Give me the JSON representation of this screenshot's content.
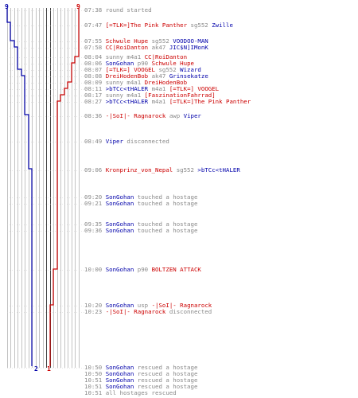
{
  "scoreboard": {
    "team_blue_start": "9",
    "team_red_start": "9",
    "team_blue_end": "2",
    "team_red_end": "1",
    "team_blue_color": "#0000aa",
    "team_red_color": "#cc0000",
    "grid_color": "#999999"
  },
  "events": [
    {
      "time": "07:38",
      "p1": "",
      "p1_team": "",
      "action": "round started",
      "p2": "",
      "p2_team": ""
    },
    {
      "time": "07:47",
      "p1": "[=TLK=]The Pink Panther",
      "p1_team": "red",
      "action": "sg552",
      "p2": "Zwille",
      "p2_team": "blue"
    },
    {
      "time": "07:55",
      "p1": "Schwule Hupe",
      "p1_team": "red",
      "action": "sg552",
      "p2": "VOODOO-MAN",
      "p2_team": "blue"
    },
    {
      "time": "07:58",
      "p1": "CC|RoiDanton",
      "p1_team": "red",
      "action": "ak47",
      "p2": "JIC$N]IMonK",
      "p2_team": "blue"
    },
    {
      "time": "08:04",
      "p1": "sunny",
      "p1_team": "gray",
      "action": "m4a1",
      "p2": "CC|RoiDanton",
      "p2_team": "red"
    },
    {
      "time": "08:06",
      "p1": "SonGohan",
      "p1_team": "blue",
      "action": "p90",
      "p2": "Schwule Hupe",
      "p2_team": "red"
    },
    {
      "time": "08:07",
      "p1": "[=TLK=] VOOGEL",
      "p1_team": "red",
      "action": "sg552",
      "p2": "Wizard",
      "p2_team": "blue"
    },
    {
      "time": "08:08",
      "p1": "DreiHodenBob",
      "p1_team": "red",
      "action": "ak47",
      "p2": "Grinsekatze",
      "p2_team": "blue"
    },
    {
      "time": "08:09",
      "p1": "sunny",
      "p1_team": "gray",
      "action": "m4a1",
      "p2": "DreiHodenBob",
      "p2_team": "red"
    },
    {
      "time": "08:11",
      "p1": ">bTCc<tHALER",
      "p1_team": "blue",
      "action": "m4a1",
      "p2": "[=TLK=] VOOGEL",
      "p2_team": "red"
    },
    {
      "time": "08:17",
      "p1": "sunny",
      "p1_team": "gray",
      "action": "m4a1",
      "p2": "[FaszinationFahrrad]",
      "p2_team": "red"
    },
    {
      "time": "08:27",
      "p1": ">bTCc<tHALER",
      "p1_team": "blue",
      "action": "m4a1",
      "p2": "[=TLK=]The Pink Panther",
      "p2_team": "red"
    },
    {
      "time": "08:36",
      "p1": "-|SoI|- Ragnarock",
      "p1_team": "red",
      "action": "awp",
      "p2": "Viper",
      "p2_team": "blue"
    },
    {
      "time": "08:49",
      "p1": "Viper",
      "p1_team": "blue",
      "action": "disconnected",
      "p2": "",
      "p2_team": ""
    },
    {
      "time": "09:06",
      "p1": "Kronprinz_von_Nepal",
      "p1_team": "red",
      "action": "sg552",
      "p2": ">bTCc<tHALER",
      "p2_team": "blue"
    },
    {
      "time": "09:20",
      "p1": "SonGohan",
      "p1_team": "blue",
      "action": "touched a hostage",
      "p2": "",
      "p2_team": ""
    },
    {
      "time": "09:21",
      "p1": "SonGohan",
      "p1_team": "blue",
      "action": "touched a hostage",
      "p2": "",
      "p2_team": ""
    },
    {
      "time": "09:35",
      "p1": "SonGohan",
      "p1_team": "blue",
      "action": "touched a hostage",
      "p2": "",
      "p2_team": ""
    },
    {
      "time": "09:36",
      "p1": "SonGohan",
      "p1_team": "blue",
      "action": "touched a hostage",
      "p2": "",
      "p2_team": ""
    },
    {
      "time": "10:00",
      "p1": "SonGohan",
      "p1_team": "blue",
      "action": "p90",
      "p2": "BOLTZEN ATTACK",
      "p2_team": "red"
    },
    {
      "time": "10:20",
      "p1": "SonGohan",
      "p1_team": "blue",
      "action": "usp",
      "p2": "-|SoI|- Ragnarock",
      "p2_team": "red"
    },
    {
      "time": "10:23",
      "p1": "-|SoI|- Ragnarock",
      "p1_team": "red",
      "action": "disconnected",
      "p2": "",
      "p2_team": ""
    },
    {
      "time": "10:50",
      "p1": "SonGohan",
      "p1_team": "blue",
      "action": "rescued a hostage",
      "p2": "",
      "p2_team": ""
    },
    {
      "time": "10:50",
      "p1": "SonGohan",
      "p1_team": "blue",
      "action": "rescued a hostage",
      "p2": "",
      "p2_team": ""
    },
    {
      "time": "10:51",
      "p1": "SonGohan",
      "p1_team": "blue",
      "action": "rescued a hostage",
      "p2": "",
      "p2_team": ""
    },
    {
      "time": "10:51",
      "p1": "SonGohan",
      "p1_team": "blue",
      "action": "rescued a hostage",
      "p2": "",
      "p2_team": ""
    },
    {
      "time": "10:51",
      "p1": "",
      "p1_team": "",
      "action": "all hostages rescued",
      "p2": "",
      "p2_team": ""
    }
  ]
}
